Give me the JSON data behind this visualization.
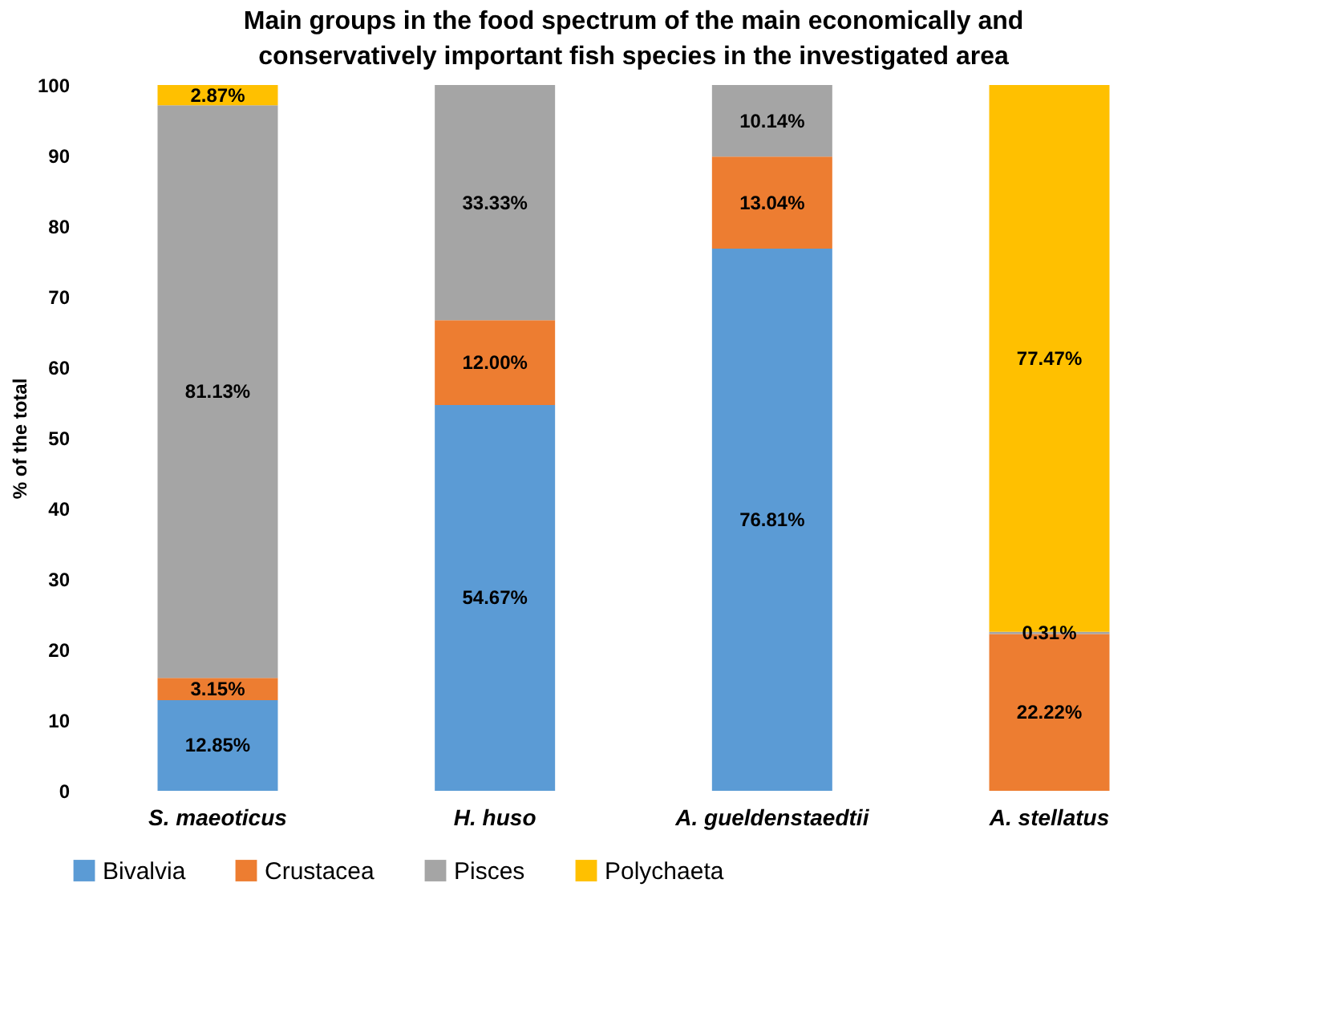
{
  "chart_data": {
    "type": "bar",
    "stacked": true,
    "title": "Main groups in the food spectrum of the main economically and conservatively important fish species in the investigated area",
    "ylabel": "% of the total",
    "categories": [
      "S. maeoticus",
      "H. huso",
      "A. gueldenstaedtii",
      "A. stellatus"
    ],
    "series": [
      {
        "name": "Bivalvia",
        "color": "#5b9bd5",
        "values": [
          12.85,
          54.67,
          76.81,
          null
        ],
        "value_labels": [
          "12.85%",
          "54.67%",
          "76.81%",
          null
        ]
      },
      {
        "name": "Crustacea",
        "color": "#ed7d31",
        "values": [
          3.15,
          12.0,
          13.04,
          22.22
        ],
        "value_labels": [
          "3.15%",
          "12.00%",
          "13.04%",
          "22.22%"
        ]
      },
      {
        "name": "Pisces",
        "color": "#a5a5a5",
        "values": [
          81.13,
          33.33,
          10.14,
          0.31
        ],
        "value_labels": [
          "81.13%",
          "33.33%",
          "10.14%",
          "0.31%"
        ]
      },
      {
        "name": "Polychaeta",
        "color": "#ffc000",
        "values": [
          2.87,
          null,
          null,
          77.47
        ],
        "value_labels": [
          "2.87%",
          null,
          null,
          "77.47%"
        ]
      }
    ],
    "ylim": [
      0,
      100
    ],
    "yticks": [
      0,
      10,
      20,
      30,
      40,
      50,
      60,
      70,
      80,
      90,
      100
    ],
    "grid": false,
    "legend": "bottom"
  }
}
